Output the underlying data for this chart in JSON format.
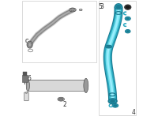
{
  "bg_color": "#ffffff",
  "border_color": "#cccccc",
  "tube_color": "#29a8c0",
  "tube_dark": "#1a7a90",
  "tube_highlight": "#6ddde8",
  "part_gray": "#888888",
  "part_light": "#cccccc",
  "part_dark": "#555555",
  "label_color": "#333333",
  "figsize": [
    2.0,
    1.47
  ],
  "dpi": 100
}
